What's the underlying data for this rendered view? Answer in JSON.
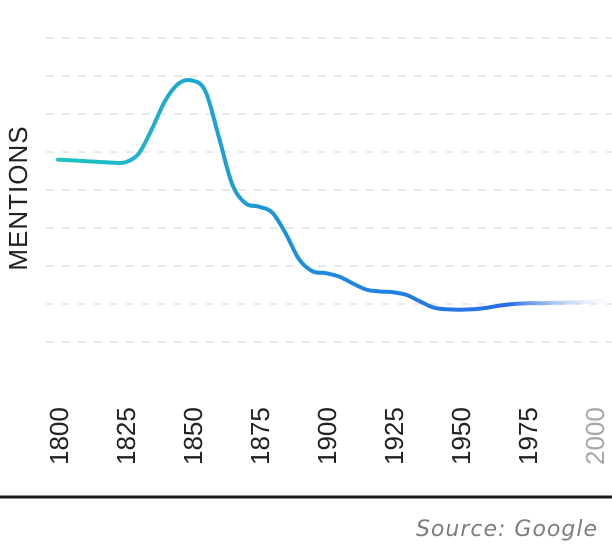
{
  "chart_data": {
    "type": "line",
    "xlabel": "",
    "ylabel": "MENTIONS",
    "x_ticks": [
      "1800",
      "1825",
      "1850",
      "1875",
      "1900",
      "1925",
      "1950",
      "1975",
      "2000"
    ],
    "faded_ticks": [
      "2000"
    ],
    "series": [
      {
        "x": [
          1800,
          1810,
          1820,
          1825,
          1830,
          1835,
          1840,
          1845,
          1850,
          1855,
          1860,
          1865,
          1870,
          1875,
          1880,
          1885,
          1890,
          1895,
          1900,
          1905,
          1910,
          1915,
          1920,
          1925,
          1930,
          1935,
          1940,
          1945,
          1950,
          1955,
          1960,
          1965,
          1970,
          1975,
          1980,
          1985,
          1990,
          1995,
          2000,
          2005
        ],
        "values": [
          58,
          57.6,
          57.2,
          57.3,
          59.5,
          66,
          73.5,
          78,
          78.8,
          76,
          64,
          51.5,
          46.5,
          45.6,
          44,
          38.5,
          31.7,
          28.6,
          28.1,
          27.2,
          25.4,
          23.8,
          23.3,
          23.1,
          22.4,
          20.7,
          19.1,
          18.6,
          18.5,
          18.6,
          19.0,
          19.6,
          20.0,
          20.2,
          20.2,
          20.3,
          20.4,
          20.5,
          20.7,
          20.9
        ]
      }
    ],
    "ylim": [
      0,
      100
    ],
    "grid": true,
    "gradient_colors": [
      "#1fc8bf",
      "#1b8fdd",
      "#2a6fe5",
      "#ffffff"
    ]
  },
  "source": "Source: Google"
}
